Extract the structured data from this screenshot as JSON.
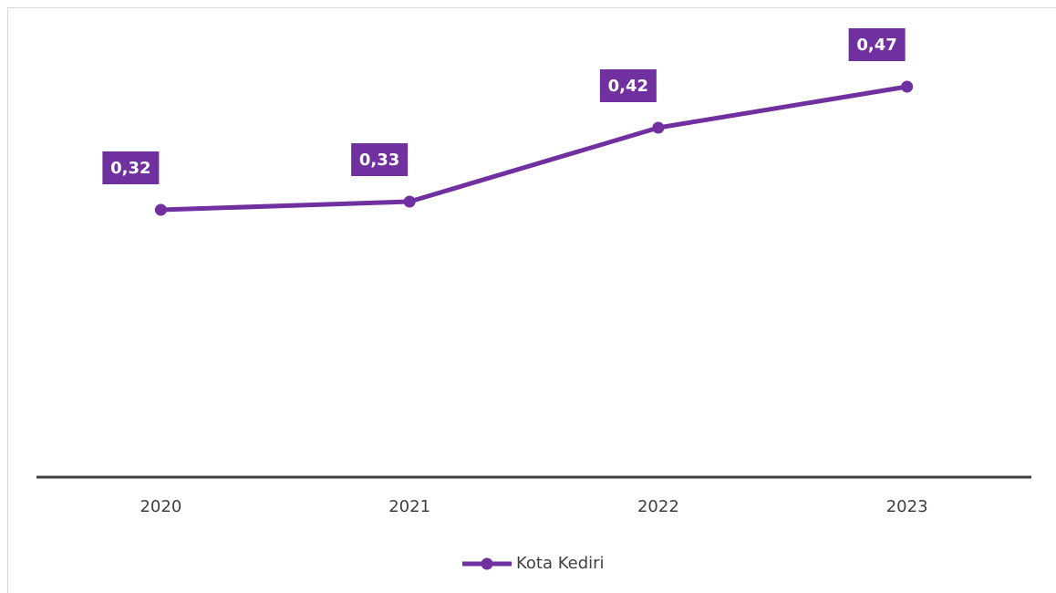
{
  "chart_data": {
    "type": "line",
    "categories": [
      "2020",
      "2021",
      "2022",
      "2023"
    ],
    "series": [
      {
        "name": "Kota Kediri",
        "color": "#7030a0",
        "values": [
          0.32,
          0.33,
          0.42,
          0.47
        ],
        "value_labels": [
          "0,32",
          "0,33",
          "0,42",
          "0,47"
        ]
      }
    ],
    "ylim": [
      0,
      0.5
    ],
    "legend": "bottom"
  }
}
